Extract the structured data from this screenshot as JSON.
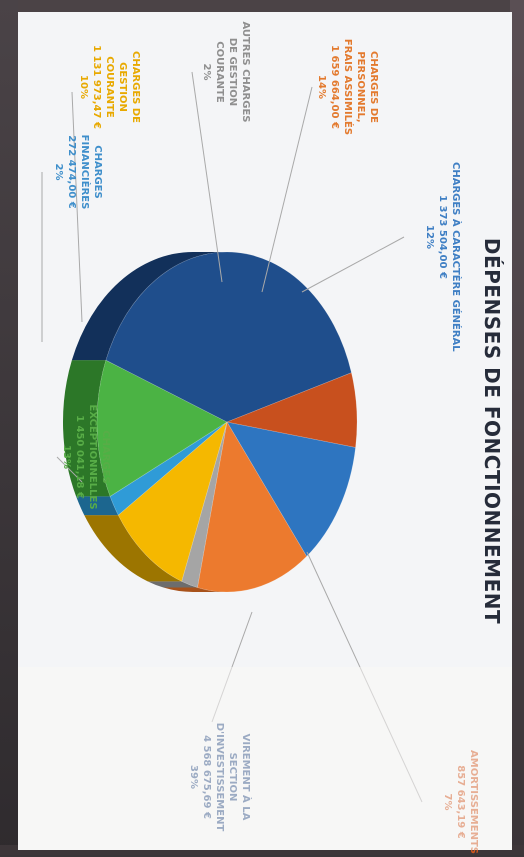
{
  "chart_data": {
    "type": "pie",
    "title": "DÉPENSES DE FONCTIONNEMENT",
    "slices": [
      {
        "label": "CHARGES À CARACTÈRE GÉNÉRAL",
        "amount": "1 373 504,00 €",
        "percent": 12,
        "pct_label": "12%",
        "color": "#2e75c0",
        "side": "#1c4f86"
      },
      {
        "label": "CHARGES DE PERSONNEL, FRAIS ASSIMILÉS",
        "amount": "1 659 664,00 €",
        "percent": 14,
        "pct_label": "14%",
        "color": "#ec7a2e",
        "side": "#a8521b"
      },
      {
        "label": "AUTRES CHARGES DE GESTION COURANTE",
        "amount": "",
        "percent": 2,
        "pct_label": "2%",
        "color": "#a5a5a5",
        "side": "#6d6d6d"
      },
      {
        "label": "CHARGES DE GESTION",
        "amount": "1 131 973,47 €",
        "percent": 10,
        "pct_label": "10%",
        "color": "#f5b800",
        "side": "#9c7500"
      },
      {
        "label": "CHARGES FINANCIÈRES",
        "amount": "272 474,00 €",
        "percent": 2,
        "pct_label": "2%",
        "color": "#2f9bd7",
        "side": "#1c668f"
      },
      {
        "label": "CHARGES EXCEPTIONNELLES",
        "amount": "1 450 041,18 €",
        "percent": 13,
        "pct_label": "13%",
        "color": "#4bb344",
        "side": "#2c7728"
      },
      {
        "label": "VIREMENT À LA SECTION D'INVESTISSEMENT",
        "amount": "4 568 675,69 €",
        "percent": 39,
        "pct_label": "39%",
        "color": "#1f4e8c",
        "side": "#12305a"
      },
      {
        "label": "AMORTISSEMENTS",
        "amount": "857 643,19 €",
        "percent": 7,
        "pct_label": "7%",
        "color": "#c8501e",
        "side": "#84320f"
      }
    ],
    "labels": [
      {
        "lines": [
          "CHARGES À CARACTÈRE GÉNÉRAL",
          "1 373 504,00 €",
          "12%"
        ],
        "color": "#3f7fc4"
      },
      {
        "lines": [
          "CHARGES DE",
          "PERSONNEL,",
          "FRAIS ASSIMILÉS",
          "1 659 664,00 €",
          "14%"
        ],
        "color": "#e37a2e"
      },
      {
        "lines": [
          "AUTRES CHARGES",
          "DE GESTION",
          "COURANTE",
          "2%"
        ],
        "color": "#8f8f8f"
      },
      {
        "lines": [
          "CHARGES DE",
          "GESTION",
          "COURANTE",
          "1 131 973,47 €",
          "10%"
        ],
        "color": "#e8a900"
      },
      {
        "lines": [
          "CHARGES",
          "FINANCIÈRES",
          "272 474,00 €",
          "2%"
        ],
        "color": "#3f8fcb"
      },
      {
        "lines": [
          "CHARGES",
          "EXCEPTIONNELLES",
          "1 450 041,18 €",
          "13%"
        ],
        "color": "#58ad47"
      },
      {
        "lines": [
          "VIREMENT À LA",
          "SECTION",
          "D'INVESTISSEMENT",
          "4 568 675,69 €",
          "39%"
        ],
        "color": "#2a4f86"
      },
      {
        "lines": [
          "AMORTISSEMENTS",
          "857 643,19 €",
          "7%"
        ],
        "color": "#d0561d"
      }
    ]
  }
}
